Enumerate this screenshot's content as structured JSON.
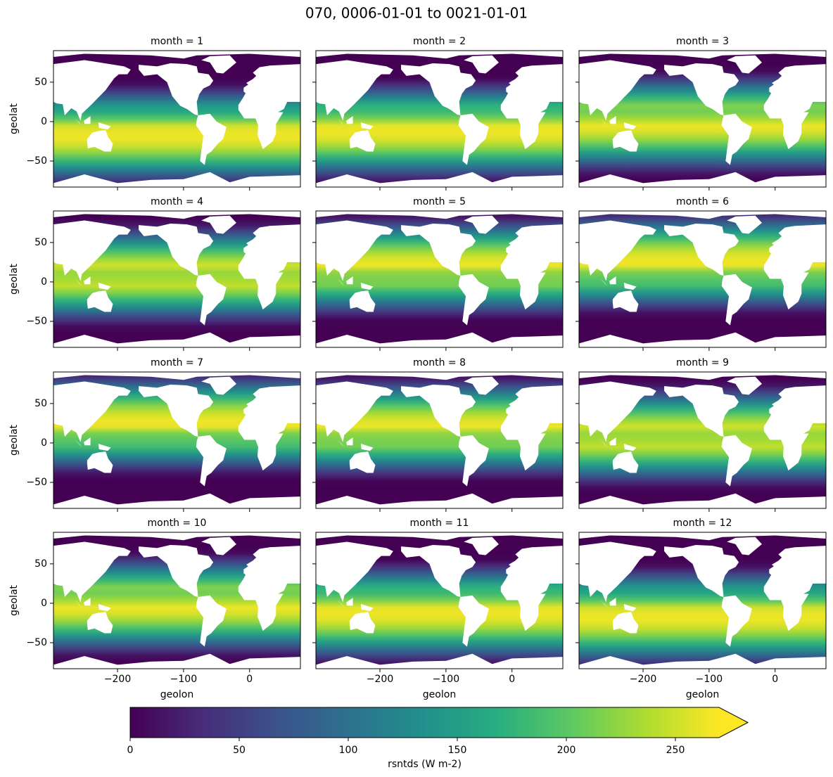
{
  "chart_data": {
    "type": "faceted-map",
    "title": "070, 0006-01-01 to 0021-01-01",
    "panels": [
      {
        "title": "month = 1"
      },
      {
        "title": "month = 2"
      },
      {
        "title": "month = 3"
      },
      {
        "title": "month = 4"
      },
      {
        "title": "month = 5"
      },
      {
        "title": "month = 6"
      },
      {
        "title": "month = 7"
      },
      {
        "title": "month = 8"
      },
      {
        "title": "month = 9"
      },
      {
        "title": "month = 10"
      },
      {
        "title": "month = 11"
      },
      {
        "title": "month = 12"
      }
    ],
    "xlabel": "geolon",
    "ylabel": "geolat",
    "xlim": [
      -297,
      77
    ],
    "xticks": [
      {
        "value": -200,
        "label": "−200"
      },
      {
        "value": -100,
        "label": "−100"
      },
      0
    ],
    "ylim": [
      -83,
      90
    ],
    "yticks": [
      {
        "value": -50,
        "label": "−50"
      },
      0,
      50
    ],
    "colormap": "viridis",
    "colorbar": {
      "label": "rsntds (W m-2)",
      "clim": [
        0,
        270
      ],
      "ticks": [
        0,
        50,
        100,
        150,
        200,
        250
      ],
      "extend": "max"
    }
  }
}
